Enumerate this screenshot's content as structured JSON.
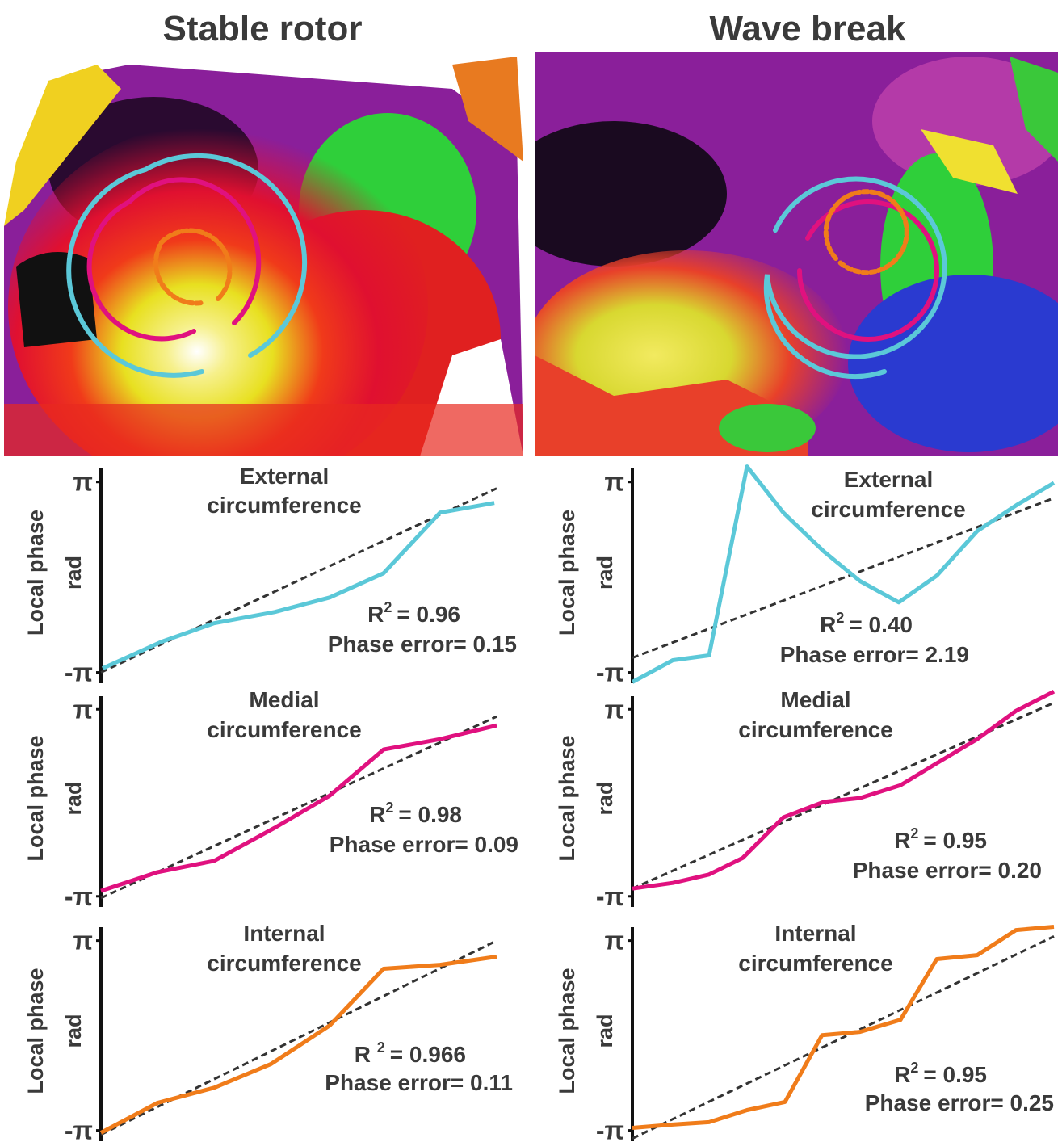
{
  "titles": [
    "Stable rotor",
    "Wave break"
  ],
  "chart_data": [
    {
      "type": "line",
      "title": [
        "External",
        "circumference"
      ],
      "y_label": "Local phase",
      "y_unit": "rad",
      "x": [
        0.04,
        1.53,
        2.86,
        4.39,
        5.78,
        7.14,
        8.57,
        9.94
      ],
      "series": [
        {
          "color": "#5bc8d8",
          "values": [
            -3.01,
            -2.13,
            -1.52,
            -1.15,
            -0.67,
            0.13,
            2.13,
            2.45
          ]
        }
      ],
      "fit": {
        "x": [
          0,
          10
        ],
        "values": [
          -3.14,
          2.93
        ],
        "color": "#333333",
        "dashed": true
      },
      "annotations": {
        "r2": "R",
        "r2_sup": "2",
        "r2_value": "= 0.96",
        "phase_error": "Phase error= 0.15"
      },
      "xlim": [
        0,
        10
      ],
      "ylim": [
        -3.5,
        3.8
      ],
      "yticks": [
        {
          "value": -3.14159,
          "label": "-π"
        },
        {
          "value": 3.14159,
          "label": "π"
        }
      ]
    },
    {
      "type": "line",
      "title": [
        "External",
        "circumference"
      ],
      "y_label": "Local phase",
      "y_unit": "rad",
      "x": [
        0,
        0.96,
        1.82,
        2.72,
        3.58,
        4.54,
        5.4,
        6.32,
        7.22,
        8.18,
        9.14,
        10
      ],
      "series": [
        {
          "color": "#5bc8d8",
          "values": [
            -3.46,
            -2.74,
            -2.58,
            3.65,
            2.13,
            0.85,
            -0.13,
            -0.83,
            0.05,
            1.52,
            2.4,
            3.11
          ]
        }
      ],
      "fit": {
        "x": [
          0,
          10
        ],
        "values": [
          -2.66,
          2.61
        ],
        "color": "#333333",
        "dashed": true
      },
      "annotations": {
        "r2": "R",
        "r2_sup": "2",
        "r2_value": "= 0.40",
        "phase_error": "Phase error= 2.19"
      },
      "xlim": [
        0,
        10
      ],
      "ylim": [
        -3.5,
        3.8
      ],
      "yticks": [
        {
          "value": -3.14159,
          "label": "-π"
        },
        {
          "value": 3.14159,
          "label": "π"
        }
      ]
    },
    {
      "type": "line",
      "title": [
        "Medial",
        "circumference"
      ],
      "y_label": "Local phase",
      "y_unit": "rad",
      "x": [
        0,
        1.43,
        2.86,
        4.39,
        5.78,
        7.14,
        8.57,
        10
      ],
      "series": [
        {
          "color": "#e0117f",
          "values": [
            -2.96,
            -2.33,
            -1.95,
            -0.84,
            0.24,
            1.79,
            2.14,
            2.6
          ]
        }
      ],
      "fit": {
        "x": [
          0,
          10
        ],
        "values": [
          -3.2,
          2.9
        ],
        "color": "#333333",
        "dashed": true
      },
      "annotations": {
        "r2": "R",
        "r2_sup": "2",
        "r2_value": "= 0.98",
        "phase_error": "Phase error= 0.09"
      },
      "xlim": [
        0,
        10
      ],
      "ylim": [
        -3.5,
        3.8
      ],
      "yticks": [
        {
          "value": -3.14159,
          "label": "-π"
        },
        {
          "value": 3.14159,
          "label": "π"
        }
      ]
    },
    {
      "type": "line",
      "title": [
        "Medial",
        "circumference"
      ],
      "y_label": "Local phase",
      "y_unit": "rad",
      "x": [
        0,
        0.96,
        1.82,
        2.62,
        3.58,
        4.54,
        5.4,
        6.36,
        7.22,
        8.18,
        9.1,
        10
      ],
      "series": [
        {
          "color": "#e0117f",
          "values": [
            -2.88,
            -2.69,
            -2.41,
            -1.85,
            -0.49,
            0.03,
            0.16,
            0.59,
            1.33,
            2.14,
            3.09,
            3.74
          ]
        }
      ],
      "fit": {
        "x": [
          0,
          10
        ],
        "values": [
          -2.88,
          3.36
        ],
        "color": "#333333",
        "dashed": true
      },
      "annotations": {
        "r2": "R",
        "r2_sup": "2",
        "r2_value": "= 0.95",
        "phase_error": "Phase error= 0.20"
      },
      "xlim": [
        0,
        10
      ],
      "ylim": [
        -3.5,
        3.8
      ],
      "yticks": [
        {
          "value": -3.14159,
          "label": "-π"
        },
        {
          "value": 3.14159,
          "label": "π"
        }
      ]
    },
    {
      "type": "line",
      "title": [
        "Internal",
        "circumference"
      ],
      "y_label": "Local phase",
      "y_unit": "rad",
      "x": [
        0,
        1.43,
        2.86,
        4.29,
        5.78,
        7.14,
        8.57,
        10
      ],
      "series": [
        {
          "color": "#f07c1a",
          "values": [
            -3.22,
            -2.23,
            -1.73,
            -0.95,
            0.33,
            2.21,
            2.34,
            2.61
          ]
        }
      ],
      "fit": {
        "x": [
          0,
          10
        ],
        "values": [
          -3.28,
          3.14
        ],
        "color": "#333333",
        "dashed": true
      },
      "annotations": {
        "r2": "R ",
        "r2_sup": "2",
        "r2_value": "= 0.966",
        "phase_error": "Phase error= 0.11"
      },
      "xlim": [
        0,
        10
      ],
      "ylim": [
        -3.5,
        3.8
      ],
      "yticks": [
        {
          "value": -3.14159,
          "label": "-π"
        },
        {
          "value": 3.14159,
          "label": "π"
        }
      ]
    },
    {
      "type": "line",
      "title": [
        "Internal",
        "circumference"
      ],
      "y_label": "Local phase",
      "y_unit": "rad",
      "x": [
        0,
        0.96,
        1.82,
        2.72,
        3.62,
        4.5,
        5.4,
        6.36,
        7.22,
        8.18,
        9.1,
        10
      ],
      "series": [
        {
          "color": "#f07c1a",
          "values": [
            -3.06,
            -2.95,
            -2.87,
            -2.47,
            -2.2,
            0.01,
            0.12,
            0.52,
            2.53,
            2.66,
            3.49,
            3.6
          ]
        }
      ],
      "fit": {
        "x": [
          0,
          10
        ],
        "values": [
          -3.41,
          3.28
        ],
        "color": "#333333",
        "dashed": true
      },
      "annotations": {
        "r2": "R",
        "r2_sup": "2",
        "r2_value": "= 0.95",
        "phase_error": "Phase error= 0.25"
      },
      "xlim": [
        0,
        10
      ],
      "ylim": [
        -3.5,
        3.8
      ],
      "yticks": [
        {
          "value": -3.14159,
          "label": "-π"
        },
        {
          "value": 3.14159,
          "label": "π"
        }
      ]
    }
  ]
}
